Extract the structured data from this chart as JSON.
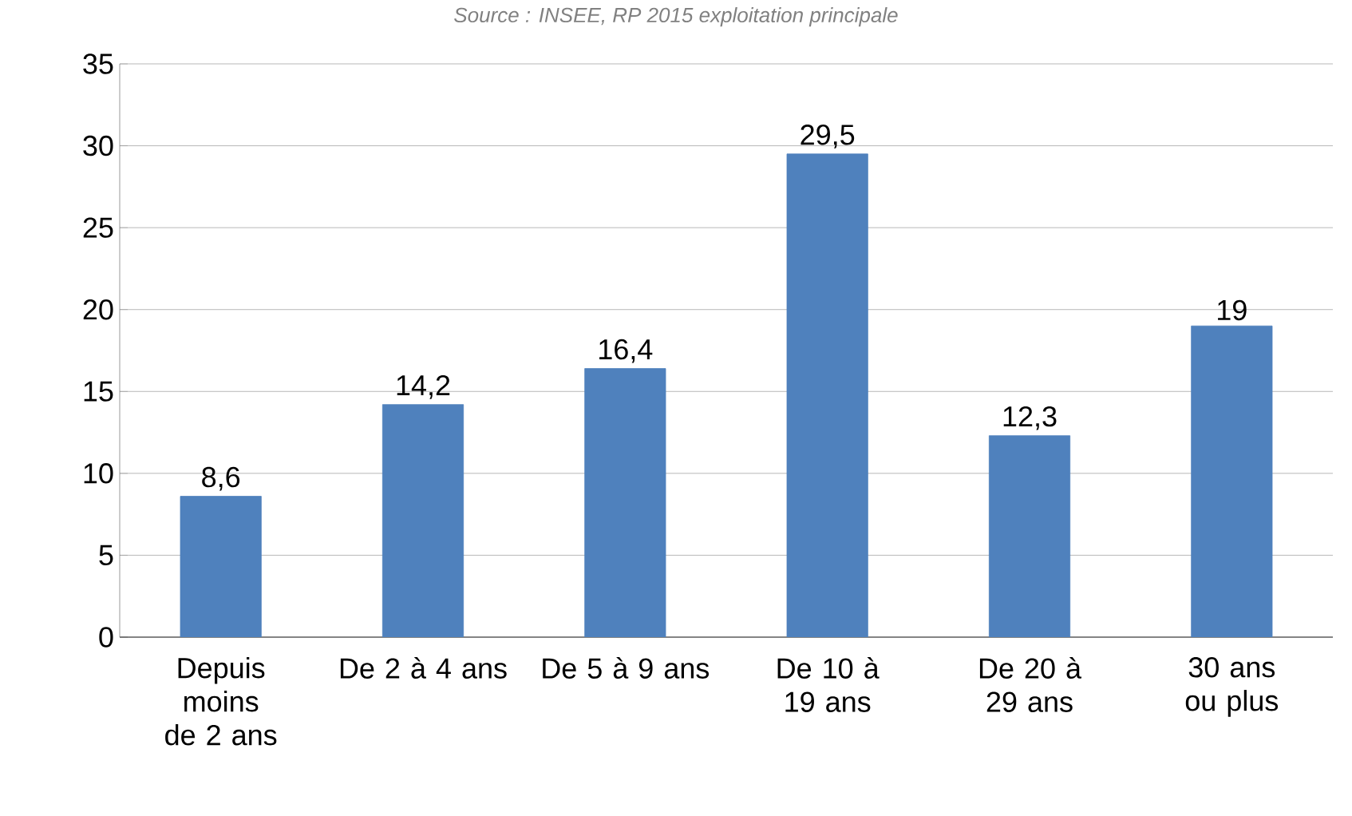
{
  "chart_data": {
    "type": "bar",
    "categories": [
      "Depuis moins de 2 ans",
      "De 2 à 4 ans",
      "De 5 à 9 ans",
      "De 10 à 19 ans",
      "De 20 à 29 ans",
      "30 ans ou plus"
    ],
    "values": [
      8.6,
      14.2,
      16.4,
      29.5,
      12.3,
      19
    ],
    "value_labels": [
      "8,6",
      "14,2",
      "16,4",
      "29,5",
      "12,3",
      "19"
    ],
    "color": "#4f81bd",
    "ylim": [
      0,
      35
    ],
    "yticks": [
      0,
      5,
      10,
      15,
      20,
      25,
      30,
      35
    ],
    "grid": "y",
    "annotations": [
      "Source : INSEE, RP 2015 exploitation principale"
    ]
  }
}
